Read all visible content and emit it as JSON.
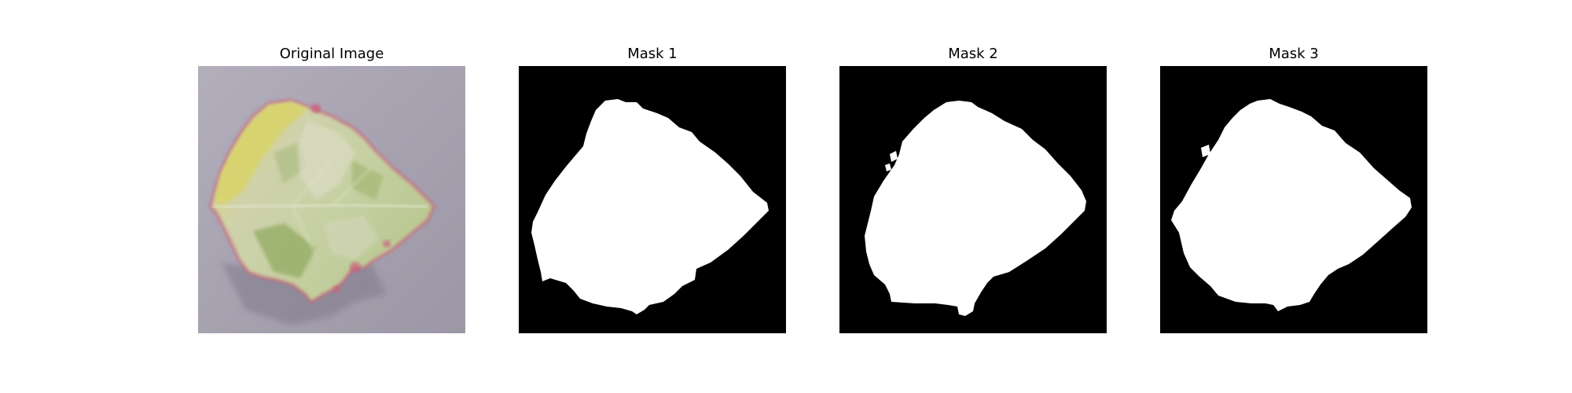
{
  "figure": {
    "panels": [
      {
        "title": "Original Image",
        "kind": "photo",
        "subject": "leaf-photo"
      },
      {
        "title": "Mask 1",
        "kind": "mask",
        "subject": "binary-mask"
      },
      {
        "title": "Mask 2",
        "kind": "mask",
        "subject": "binary-mask"
      },
      {
        "title": "Mask 3",
        "kind": "mask",
        "subject": "binary-mask"
      }
    ]
  },
  "colors": {
    "mask_background": "#000000",
    "mask_foreground": "#ffffff",
    "photo_background": "#a9a4b2",
    "leaf_yellow": "#d9d46a",
    "leaf_pale": "#cfd2ac",
    "leaf_green": "#8fa95e",
    "leaf_edge_red": "#c9607a"
  }
}
